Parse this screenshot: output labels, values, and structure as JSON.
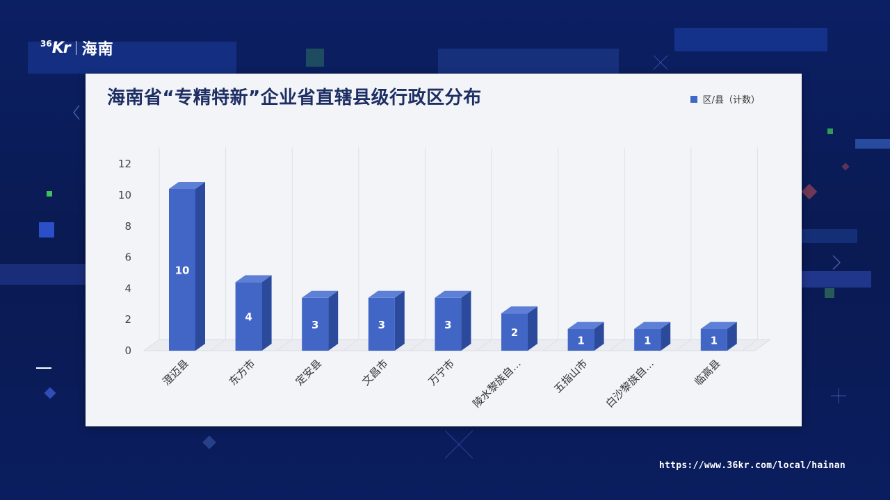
{
  "brand": {
    "logo_text": "Kr",
    "logo_prefix": "36",
    "region": "海南"
  },
  "footer": {
    "url": "https://www.36kr.com/local/hainan"
  },
  "chart_data": {
    "type": "bar",
    "title": "海南省“专精特新”企业省直辖县级行政区分布",
    "legend": {
      "label": "区/县（计数）",
      "position": "top-right"
    },
    "categories": [
      "澄迈县",
      "东方市",
      "定安县",
      "文昌市",
      "万宁市",
      "陵水黎族自…",
      "五指山市",
      "白沙黎族自…",
      "临高县"
    ],
    "series": [
      {
        "name": "区/县（计数）",
        "values": [
          10,
          4,
          3,
          3,
          3,
          2,
          1,
          1,
          1
        ]
      }
    ],
    "yticks": [
      "0",
      "2",
      "4",
      "6",
      "8",
      "10",
      "12"
    ],
    "ylim": [
      0,
      12
    ],
    "grid": "vertical",
    "style": "3d-bar",
    "colors": {
      "bar_front": "#4166c6",
      "bar_side": "#2b4a9c",
      "bar_top": "#5d80d6",
      "label": "#ffffff"
    }
  }
}
